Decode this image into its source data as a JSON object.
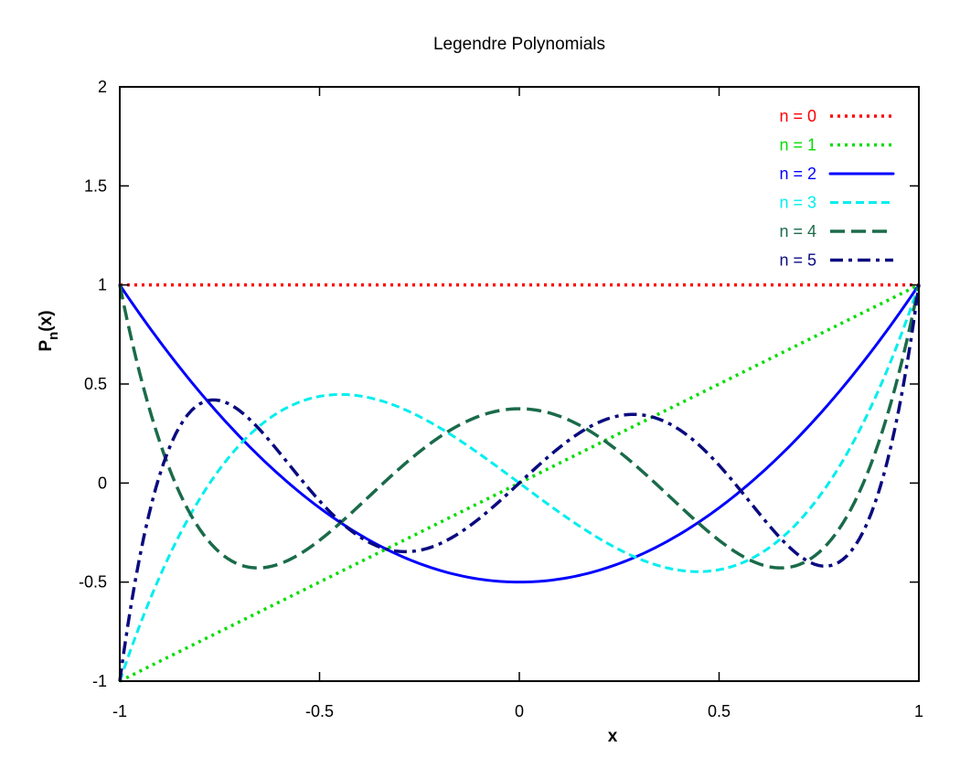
{
  "chart_data": {
    "type": "line",
    "title": "Legendre Polynomials",
    "xlabel": "x",
    "ylabel": "P_n(x)",
    "ylabel_main": "P",
    "ylabel_sub": "n",
    "ylabel_arg": "(x)",
    "xlim": [
      -1,
      1
    ],
    "ylim": [
      -1,
      2
    ],
    "xticks": [
      -1,
      -0.5,
      0,
      0.5,
      1
    ],
    "xtick_labels": [
      "-1",
      "-0.5",
      "0",
      "0.5",
      "1"
    ],
    "yticks": [
      -1,
      -0.5,
      0,
      0.5,
      1,
      1.5,
      2
    ],
    "ytick_labels": [
      "-1",
      "-0.5",
      "0",
      "0.5",
      "1",
      "1.5",
      "2"
    ],
    "grid": false,
    "legend_position": "top-right",
    "series": [
      {
        "name": "n = 0",
        "n": 0,
        "color": "#ff0000",
        "style": "dotted"
      },
      {
        "name": "n = 1",
        "n": 1,
        "color": "#00dd00",
        "style": "dotted"
      },
      {
        "name": "n = 2",
        "n": 2,
        "color": "#0000ff",
        "style": "solid"
      },
      {
        "name": "n = 3",
        "n": 3,
        "color": "#00eeee",
        "style": "dashed"
      },
      {
        "name": "n = 4",
        "n": 4,
        "color": "#1a6b4a",
        "style": "long-dash"
      },
      {
        "name": "n = 5",
        "n": 5,
        "color": "#0a0a80",
        "style": "dash-dot"
      }
    ]
  }
}
